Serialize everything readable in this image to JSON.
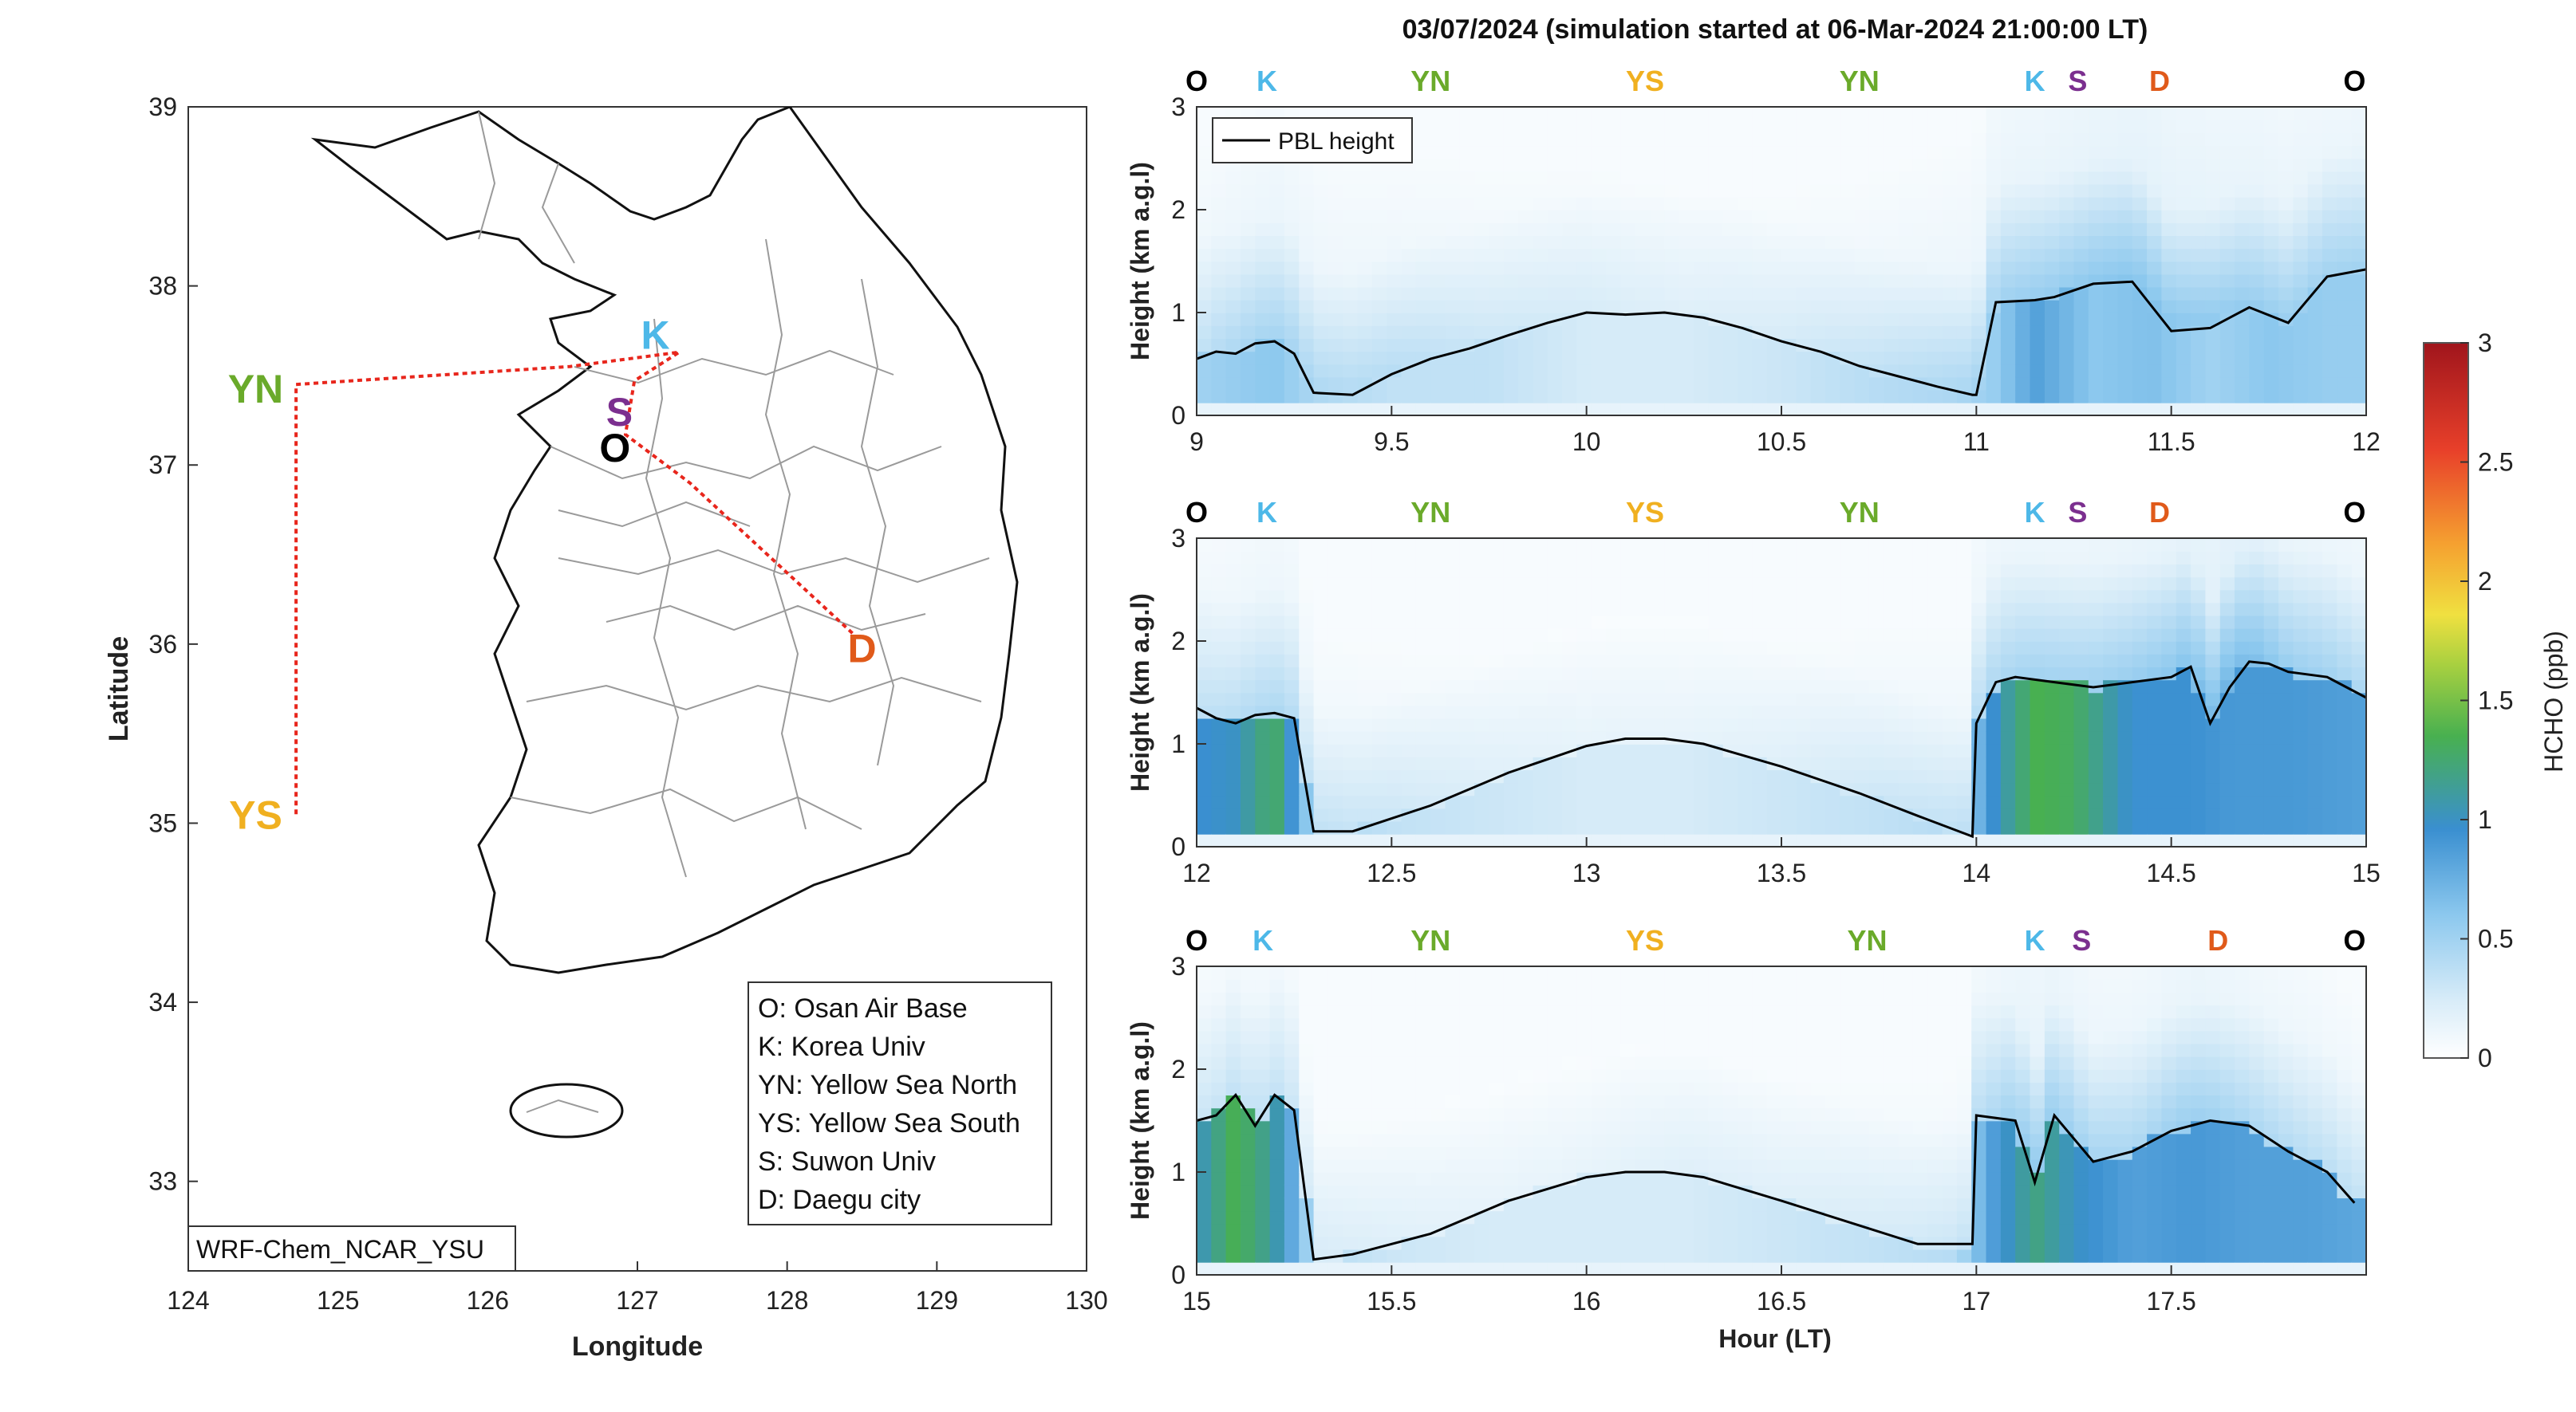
{
  "figure_title": "03/07/2024 (simulation started at 06-Mar-2024 21:00:00 LT)",
  "colors": {
    "O": "#000000",
    "K": "#4db8e8",
    "YN": "#6aaa2a",
    "YS": "#f0b020",
    "S": "#7b2f8f",
    "D": "#e05a1a",
    "pbl": "#000000",
    "track": "#e8261c"
  },
  "map": {
    "xlabel": "Longitude",
    "ylabel": "Latitude",
    "xlim": [
      124,
      130
    ],
    "ylim": [
      32.5,
      39
    ],
    "xticks": [
      "124",
      "125",
      "126",
      "127",
      "128",
      "129",
      "130"
    ],
    "yticks": [
      "33",
      "34",
      "35",
      "36",
      "37",
      "38",
      "39"
    ],
    "model_label": "WRF-Chem_NCAR_YSU",
    "station_labels": [
      {
        "code": "K",
        "lon": 127.12,
        "lat": 37.72
      },
      {
        "code": "YN",
        "lon": 124.45,
        "lat": 37.42
      },
      {
        "code": "S",
        "lon": 126.88,
        "lat": 37.29
      },
      {
        "code": "O",
        "lon": 126.85,
        "lat": 37.09
      },
      {
        "code": "D",
        "lon": 128.5,
        "lat": 35.97
      },
      {
        "code": "YS",
        "lon": 124.45,
        "lat": 35.04
      }
    ],
    "legend": [
      "O: Osan Air Base",
      "K: Korea Univ",
      "YN: Yellow Sea North",
      "YS: Yellow Sea South",
      "S: Suwon Univ",
      "D: Daegu city"
    ],
    "track": [
      [
        124.72,
        35.05
      ],
      [
        124.72,
        37.45
      ],
      [
        126.55,
        37.55
      ],
      [
        127.28,
        37.63
      ],
      [
        126.98,
        37.47
      ],
      [
        126.92,
        37.17
      ],
      [
        127.35,
        36.9
      ],
      [
        128.45,
        36.05
      ]
    ]
  },
  "chart_data": {
    "type": "heatmap",
    "ylabel": "Height (km a.g.l)",
    "xlabel": "Hour (LT)",
    "colorbar": {
      "label": "HCHO (ppb)",
      "range": [
        0,
        3
      ],
      "ticks": [
        "0",
        "0.5",
        "1",
        "1.5",
        "2",
        "2.5",
        "3"
      ]
    },
    "legend": "PBL height",
    "ylim": [
      0,
      3
    ],
    "yticks": [
      "0",
      "1",
      "2",
      "3"
    ],
    "panels": [
      {
        "xlim": [
          9,
          12
        ],
        "xticks": [
          "9",
          "9.5",
          "10",
          "10.5",
          "11",
          "11.5",
          "12"
        ],
        "top_labels": [
          {
            "code": "O",
            "x": 9.0
          },
          {
            "code": "K",
            "x": 9.18
          },
          {
            "code": "YN",
            "x": 9.6
          },
          {
            "code": "YS",
            "x": 10.15
          },
          {
            "code": "YN",
            "x": 10.7
          },
          {
            "code": "K",
            "x": 11.15
          },
          {
            "code": "S",
            "x": 11.26
          },
          {
            "code": "D",
            "x": 11.47
          },
          {
            "code": "O",
            "x": 11.97
          }
        ],
        "pbl": {
          "x": [
            9.0,
            9.05,
            9.1,
            9.15,
            9.2,
            9.25,
            9.3,
            9.4,
            9.5,
            9.6,
            9.7,
            9.8,
            9.9,
            10.0,
            10.1,
            10.2,
            10.3,
            10.4,
            10.5,
            10.6,
            10.7,
            10.8,
            10.9,
            10.99,
            11.0,
            11.05,
            11.15,
            11.2,
            11.3,
            11.4,
            11.5,
            11.6,
            11.7,
            11.8,
            11.9,
            12.0
          ],
          "y": [
            0.55,
            0.62,
            0.6,
            0.7,
            0.72,
            0.6,
            0.22,
            0.2,
            0.4,
            0.55,
            0.65,
            0.78,
            0.9,
            1.0,
            0.98,
            1.0,
            0.95,
            0.85,
            0.72,
            0.62,
            0.48,
            0.38,
            0.28,
            0.2,
            0.2,
            1.1,
            1.12,
            1.15,
            1.28,
            1.3,
            0.82,
            0.85,
            1.05,
            0.9,
            1.35,
            1.42
          ]
        },
        "hcho": {
          "x": [
            9.0,
            9.1,
            9.2,
            9.3,
            9.5,
            9.75,
            10.0,
            10.25,
            10.5,
            10.75,
            10.95,
            11.05,
            11.15,
            11.3,
            11.45,
            11.6,
            11.75,
            11.9,
            12.0
          ],
          "surface": [
            0.5,
            0.55,
            0.6,
            0.45,
            0.35,
            0.35,
            0.25,
            0.25,
            0.3,
            0.4,
            0.45,
            0.55,
            0.85,
            0.6,
            0.65,
            0.5,
            0.6,
            0.55,
            0.55
          ],
          "aloft": [
            0.35,
            0.45,
            0.5,
            0.45,
            0.4,
            0.3,
            0.25,
            0.2,
            0.25,
            0.35,
            0.45,
            0.5,
            0.55,
            0.6,
            0.65,
            0.6,
            0.55,
            0.5,
            0.5
          ]
        }
      },
      {
        "xlim": [
          12,
          15
        ],
        "xticks": [
          "12",
          "12.5",
          "13",
          "13.5",
          "14",
          "14.5",
          "15"
        ],
        "top_labels": [
          {
            "code": "O",
            "x": 12.0
          },
          {
            "code": "K",
            "x": 12.18
          },
          {
            "code": "YN",
            "x": 12.6
          },
          {
            "code": "YS",
            "x": 13.15
          },
          {
            "code": "YN",
            "x": 13.7
          },
          {
            "code": "K",
            "x": 14.15
          },
          {
            "code": "S",
            "x": 14.26
          },
          {
            "code": "D",
            "x": 14.47
          },
          {
            "code": "O",
            "x": 14.97
          }
        ],
        "pbl": {
          "x": [
            12.0,
            12.05,
            12.1,
            12.15,
            12.2,
            12.25,
            12.3,
            12.4,
            12.6,
            12.8,
            13.0,
            13.1,
            13.2,
            13.3,
            13.5,
            13.7,
            13.85,
            13.99,
            14.0,
            14.05,
            14.1,
            14.2,
            14.3,
            14.5,
            14.55,
            14.6,
            14.65,
            14.7,
            14.75,
            14.8,
            14.9,
            15.0
          ],
          "y": [
            1.35,
            1.25,
            1.2,
            1.28,
            1.3,
            1.25,
            0.15,
            0.15,
            0.4,
            0.72,
            0.98,
            1.05,
            1.05,
            1.0,
            0.78,
            0.52,
            0.3,
            0.1,
            1.2,
            1.6,
            1.65,
            1.6,
            1.55,
            1.65,
            1.75,
            1.2,
            1.55,
            1.8,
            1.78,
            1.7,
            1.65,
            1.45
          ]
        },
        "hcho": {
          "x": [
            12.0,
            12.1,
            12.2,
            12.3,
            12.5,
            12.75,
            13.0,
            13.25,
            13.5,
            13.75,
            13.95,
            14.05,
            14.15,
            14.25,
            14.4,
            14.55,
            14.65,
            14.8,
            15.0
          ],
          "surface": [
            0.95,
            1.0,
            1.3,
            0.45,
            0.35,
            0.3,
            0.25,
            0.25,
            0.3,
            0.35,
            0.4,
            1.0,
            1.35,
            1.3,
            0.95,
            0.95,
            0.9,
            0.9,
            0.85
          ],
          "aloft": [
            0.35,
            0.4,
            0.45,
            0.35,
            0.3,
            0.2,
            0.15,
            0.15,
            0.2,
            0.3,
            0.35,
            0.45,
            0.5,
            0.5,
            0.55,
            0.65,
            0.75,
            0.55,
            0.45
          ]
        }
      },
      {
        "xlim": [
          15,
          18
        ],
        "xticks": [
          "15",
          "15.5",
          "16",
          "16.5",
          "17",
          "17.5"
        ],
        "top_labels": [
          {
            "code": "O",
            "x": 15.0
          },
          {
            "code": "K",
            "x": 15.17
          },
          {
            "code": "YN",
            "x": 15.6
          },
          {
            "code": "YS",
            "x": 16.15
          },
          {
            "code": "YN",
            "x": 16.72
          },
          {
            "code": "K",
            "x": 17.15
          },
          {
            "code": "S",
            "x": 17.27
          },
          {
            "code": "D",
            "x": 17.62
          },
          {
            "code": "O",
            "x": 17.97
          }
        ],
        "pbl": {
          "x": [
            15.0,
            15.05,
            15.1,
            15.15,
            15.2,
            15.25,
            15.3,
            15.4,
            15.6,
            15.8,
            16.0,
            16.1,
            16.2,
            16.3,
            16.5,
            16.7,
            16.85,
            16.99,
            17.0,
            17.1,
            17.15,
            17.2,
            17.3,
            17.4,
            17.5,
            17.6,
            17.7,
            17.8,
            17.9,
            17.97
          ],
          "y": [
            1.5,
            1.55,
            1.75,
            1.45,
            1.75,
            1.6,
            0.15,
            0.2,
            0.4,
            0.72,
            0.95,
            1.0,
            1.0,
            0.95,
            0.72,
            0.48,
            0.3,
            0.3,
            1.55,
            1.5,
            0.9,
            1.55,
            1.1,
            1.2,
            1.4,
            1.5,
            1.45,
            1.2,
            1.0,
            0.7
          ]
        },
        "hcho": {
          "x": [
            15.0,
            15.1,
            15.2,
            15.3,
            15.5,
            15.75,
            16.0,
            16.25,
            16.5,
            16.75,
            16.95,
            17.05,
            17.15,
            17.25,
            17.4,
            17.55,
            17.7,
            17.85,
            18.0
          ],
          "surface": [
            1.0,
            1.35,
            1.1,
            0.4,
            0.3,
            0.25,
            0.25,
            0.25,
            0.3,
            0.35,
            0.4,
            0.9,
            1.2,
            1.0,
            0.85,
            0.9,
            0.85,
            0.85,
            0.8
          ],
          "aloft": [
            0.3,
            0.35,
            0.35,
            0.25,
            0.2,
            0.15,
            0.15,
            0.2,
            0.2,
            0.25,
            0.3,
            0.45,
            0.6,
            0.5,
            0.45,
            0.55,
            0.45,
            0.4,
            0.35
          ]
        }
      }
    ]
  }
}
